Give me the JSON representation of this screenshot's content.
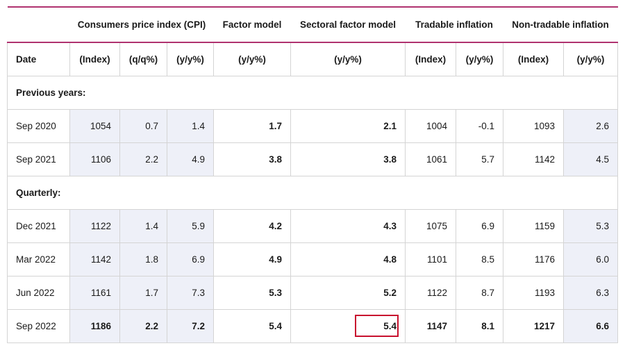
{
  "groups": [
    {
      "label": "",
      "span": 1
    },
    {
      "label": "Consumers price index (CPI)",
      "span": 3
    },
    {
      "label": "Factor model",
      "span": 1
    },
    {
      "label": "Sectoral factor model",
      "span": 1
    },
    {
      "label": "Tradable inflation",
      "span": 2
    },
    {
      "label": "Non-tradable inflation",
      "span": 2
    }
  ],
  "units": [
    "Date",
    "(Index)",
    "(q/q%)",
    "(y/y%)",
    "(y/y%)",
    "(y/y%)",
    "(Index)",
    "(y/y%)",
    "(Index)",
    "(y/y%)"
  ],
  "sections": [
    {
      "title": "Previous years:",
      "rows": [
        {
          "date": "Sep 2020",
          "values": [
            "1054",
            "0.7",
            "1.4",
            "1.7",
            "2.1",
            "1004",
            "-0.1",
            "1093",
            "2.6"
          ]
        },
        {
          "date": "Sep 2021",
          "values": [
            "1106",
            "2.2",
            "4.9",
            "3.8",
            "3.8",
            "1061",
            "5.7",
            "1142",
            "4.5"
          ]
        }
      ]
    },
    {
      "title": "Quarterly:",
      "rows": [
        {
          "date": "Dec 2021",
          "values": [
            "1122",
            "1.4",
            "5.9",
            "4.2",
            "4.3",
            "1075",
            "6.9",
            "1159",
            "5.3"
          ]
        },
        {
          "date": "Mar 2022",
          "values": [
            "1142",
            "1.8",
            "6.9",
            "4.9",
            "4.8",
            "1101",
            "8.5",
            "1176",
            "6.0"
          ]
        },
        {
          "date": "Jun 2022",
          "values": [
            "1161",
            "1.7",
            "7.3",
            "5.3",
            "5.2",
            "1122",
            "8.7",
            "1193",
            "6.3"
          ]
        },
        {
          "date": "Sep 2022",
          "values": [
            "1186",
            "2.2",
            "7.2",
            "5.4",
            "5.4",
            "1147",
            "8.1",
            "1217",
            "6.6"
          ]
        }
      ]
    }
  ],
  "highlight_color": "#c8102e",
  "header_rule_color": "#b0326f",
  "shade_color": "#eef0f8"
}
